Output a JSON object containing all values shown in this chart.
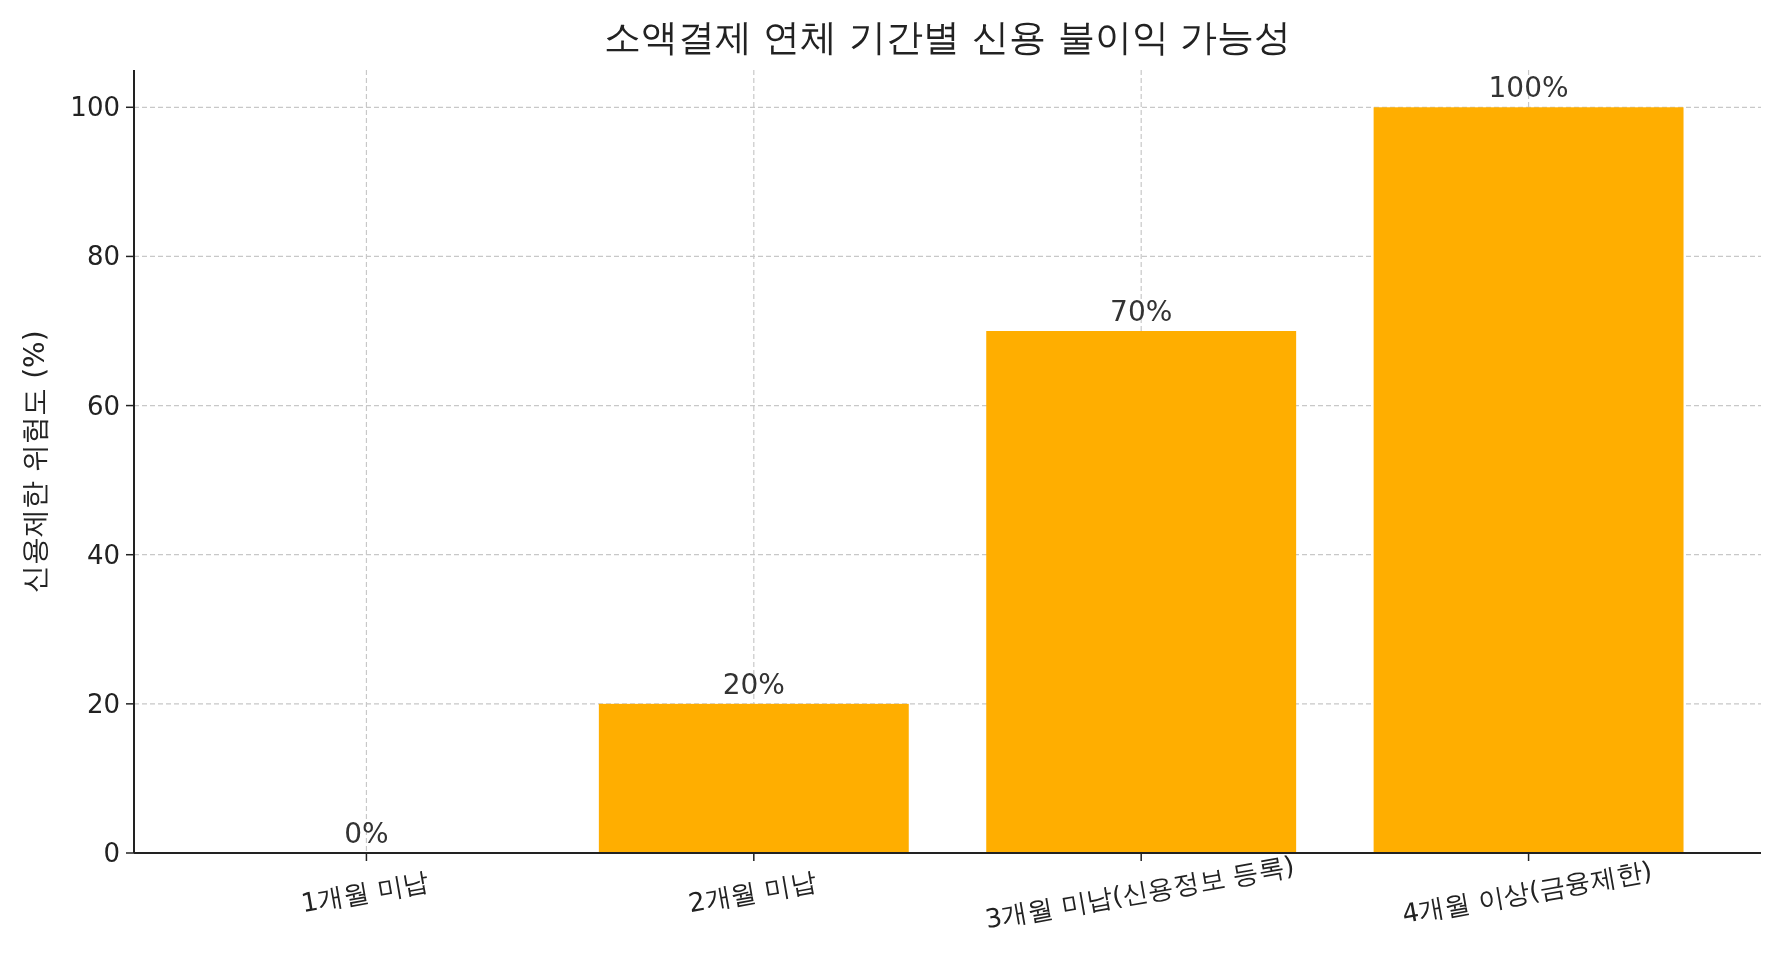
{
  "chart_data": {
    "type": "bar",
    "title": "소액결제 연체 기간별 신용 불이익 가능성",
    "ylabel": "신용제한 위험도 (%)",
    "categories": [
      "1개월 미납",
      "2개월 미납",
      "3개월 미납(신용정보 등록)",
      "4개월 이상(금융제한)"
    ],
    "values": [
      0,
      20,
      70,
      100
    ],
    "value_labels": [
      "0%",
      "20%",
      "70%",
      "100%"
    ],
    "color": "#ffae00",
    "ylim": [
      0,
      105
    ],
    "yticks": [
      0,
      20,
      40,
      60,
      80,
      100
    ],
    "grid": true
  }
}
